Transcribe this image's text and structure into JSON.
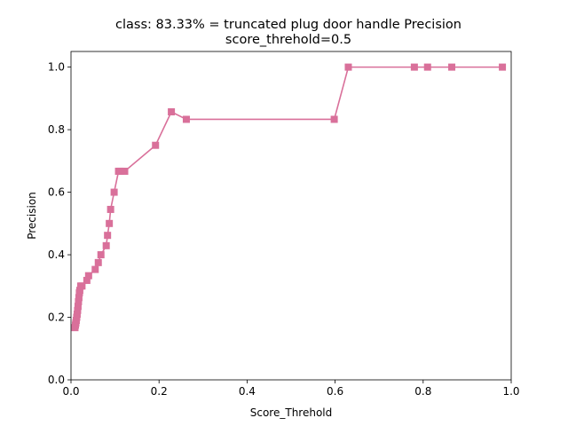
{
  "chart_data": {
    "type": "line",
    "title": "class: 83.33% = truncated plug door handle Precision",
    "subtitle": "score_threhold=0.5",
    "xlabel": "Score_Threhold",
    "ylabel": "Precision",
    "xlim": [
      0.0,
      1.0
    ],
    "ylim": [
      0.0,
      1.05
    ],
    "xticks": [
      "0.0",
      "0.2",
      "0.4",
      "0.6",
      "0.8",
      "1.0"
    ],
    "yticks": [
      "0.0",
      "0.2",
      "0.4",
      "0.6",
      "0.8",
      "1.0"
    ],
    "grid": false,
    "legend": "none",
    "colors": {
      "series": "#d9709a",
      "axes": "#000000",
      "background": "#ffffff"
    },
    "series": [
      {
        "marker": "square",
        "x": [
          0.009,
          0.01,
          0.011,
          0.012,
          0.013,
          0.014,
          0.015,
          0.016,
          0.017,
          0.018,
          0.019,
          0.02,
          0.022,
          0.025,
          0.036,
          0.04,
          0.055,
          0.062,
          0.068,
          0.08,
          0.083,
          0.087,
          0.09,
          0.098,
          0.108,
          0.112,
          0.122,
          0.192,
          0.228,
          0.262,
          0.598,
          0.63,
          0.78,
          0.81,
          0.865,
          0.98
        ],
        "y": [
          0.167,
          0.175,
          0.182,
          0.19,
          0.2,
          0.21,
          0.222,
          0.235,
          0.25,
          0.263,
          0.278,
          0.286,
          0.3,
          0.3,
          0.318,
          0.333,
          0.353,
          0.375,
          0.4,
          0.429,
          0.462,
          0.5,
          0.545,
          0.6,
          0.667,
          0.667,
          0.667,
          0.75,
          0.857,
          0.833,
          0.833,
          1.0,
          1.0,
          1.0,
          1.0,
          1.0
        ]
      }
    ]
  }
}
